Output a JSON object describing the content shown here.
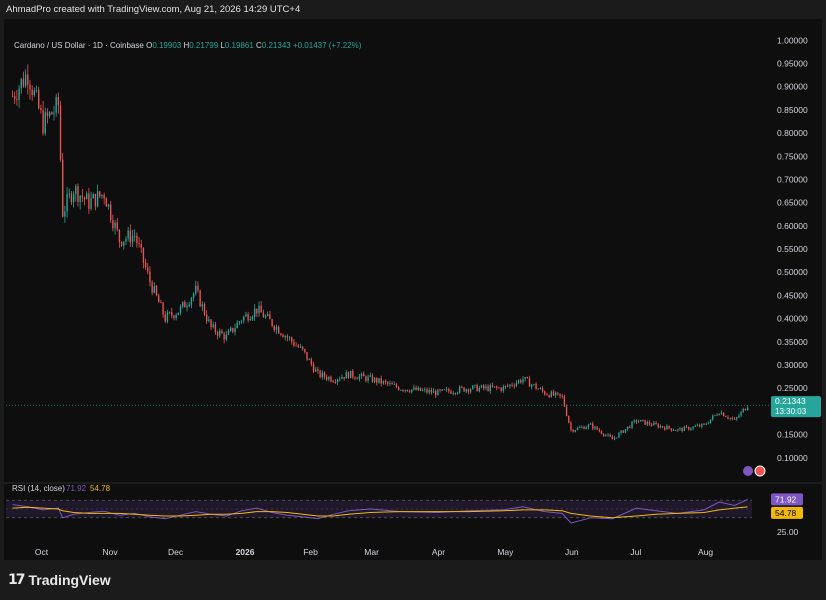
{
  "header": {
    "attribution": "AhmadPro created with TradingView.com, Aug 21, 2026 14:29 UTC+4"
  },
  "legend": {
    "symbol": "Cardano / US Dollar · 1D · Coinbase",
    "o_label": "O",
    "o_value": "0.19903",
    "h_label": "H",
    "h_value": "0.21799",
    "l_label": "L",
    "l_value": "0.19861",
    "c_label": "C",
    "c_value": "0.21343",
    "change": "+0.01437 (+7.22%)"
  },
  "price_tag": {
    "value": "0.21343",
    "countdown": "13:30:03"
  },
  "rsi_legend": {
    "title": "RSI (14, close)",
    "rsi_value": "71.92",
    "ma_value": "54.78"
  },
  "footer": {
    "brand": "TradingView",
    "logo_mark": "17"
  },
  "colors": {
    "up": "#26a69a",
    "down": "#ef5350",
    "rsi_line": "#7e57c2",
    "rsi_ma": "#f0b90b",
    "rsi_band": "#2a1f3d",
    "price_tag": "#26a69a",
    "rsi_tag": "#7e57c2",
    "ma_tag": "#f0b90b"
  },
  "chart_data": [
    {
      "type": "candlestick",
      "title": "Cardano / US Dollar · 1D · Coinbase",
      "y_ticks": [
        "1.00000",
        "0.95000",
        "0.90000",
        "0.85000",
        "0.80000",
        "0.75000",
        "0.70000",
        "0.65000",
        "0.60000",
        "0.55000",
        "0.50000",
        "0.45000",
        "0.40000",
        "0.35000",
        "0.30000",
        "0.25000",
        "0.20000",
        "0.15000",
        "0.10000"
      ],
      "ylim": [
        0.05,
        1.02
      ],
      "x_ticks": [
        "Oct",
        "Nov",
        "Dec",
        "2026",
        "Feb",
        "Mar",
        "Apr",
        "May",
        "Jun",
        "Jul",
        "Aug"
      ],
      "x": [
        "2025-09-18",
        "2025-09-25",
        "2025-10-02",
        "2025-10-09",
        "2025-10-11",
        "2025-10-16",
        "2025-10-23",
        "2025-10-30",
        "2025-11-06",
        "2025-11-13",
        "2025-11-20",
        "2025-11-27",
        "2025-12-04",
        "2025-12-11",
        "2025-12-18",
        "2025-12-25",
        "2026-01-01",
        "2026-01-08",
        "2026-01-15",
        "2026-01-22",
        "2026-01-29",
        "2026-02-05",
        "2026-02-12",
        "2026-02-19",
        "2026-03-01",
        "2026-03-15",
        "2026-04-01",
        "2026-04-15",
        "2026-05-01",
        "2026-05-10",
        "2026-05-20",
        "2026-05-28",
        "2026-06-01",
        "2026-06-10",
        "2026-06-20",
        "2026-07-01",
        "2026-07-10",
        "2026-07-20",
        "2026-08-01",
        "2026-08-08",
        "2026-08-15",
        "2026-08-21"
      ],
      "close": [
        0.88,
        0.93,
        0.82,
        0.86,
        0.63,
        0.68,
        0.65,
        0.67,
        0.57,
        0.58,
        0.48,
        0.4,
        0.42,
        0.46,
        0.38,
        0.36,
        0.4,
        0.42,
        0.39,
        0.36,
        0.33,
        0.28,
        0.27,
        0.28,
        0.27,
        0.25,
        0.24,
        0.25,
        0.25,
        0.27,
        0.24,
        0.23,
        0.16,
        0.17,
        0.14,
        0.18,
        0.17,
        0.16,
        0.17,
        0.2,
        0.18,
        0.21343
      ],
      "y_unit": "USD"
    },
    {
      "type": "line",
      "title": "RSI (14, close)",
      "ylim": [
        0,
        100
      ],
      "bands": [
        30,
        70
      ],
      "y_ticks": [
        "25.00"
      ],
      "series": [
        {
          "name": "RSI",
          "values": [
            60,
            55,
            48,
            52,
            30,
            38,
            42,
            45,
            36,
            40,
            32,
            28,
            36,
            44,
            38,
            34,
            46,
            52,
            42,
            36,
            32,
            28,
            38,
            46,
            50,
            44,
            42,
            46,
            48,
            55,
            44,
            40,
            18,
            30,
            28,
            52,
            46,
            40,
            48,
            66,
            58,
            71.92
          ]
        },
        {
          "name": "MA",
          "values": [
            52,
            54,
            52,
            50,
            46,
            42,
            40,
            40,
            40,
            38,
            36,
            34,
            34,
            36,
            38,
            38,
            40,
            44,
            44,
            42,
            38,
            34,
            34,
            38,
            42,
            44,
            44,
            44,
            46,
            48,
            48,
            46,
            40,
            34,
            30,
            34,
            38,
            40,
            42,
            48,
            52,
            54.78
          ]
        }
      ]
    }
  ]
}
